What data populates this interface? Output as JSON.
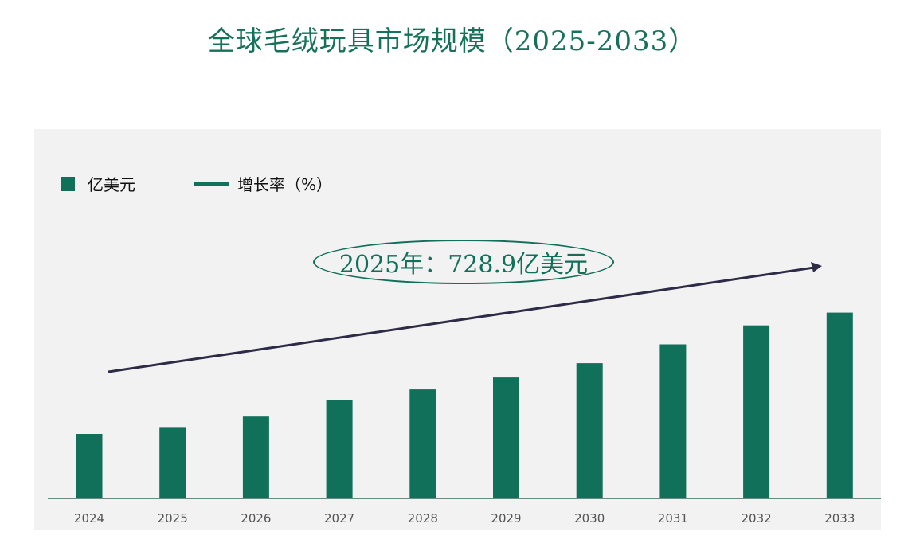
{
  "title": "全球毛绒玩具市场规模（2025-2033）",
  "legend": {
    "bar_label": "亿美元",
    "line_label": "增长率（%）"
  },
  "callout": "2025年：728.9亿美元",
  "colors": {
    "bar": "#10705a",
    "title": "#17715a",
    "arrow": "#2d2b45",
    "background": "#f2f2f2"
  },
  "chart_data": {
    "type": "bar",
    "categories": [
      "2024",
      "2025",
      "2026",
      "2027",
      "2028",
      "2029",
      "2030",
      "2031",
      "2032",
      "2033"
    ],
    "series": [
      {
        "name": "亿美元",
        "values": [
          659,
          728.9,
          836,
          1005,
          1114,
          1236,
          1382,
          1574,
          1768,
          1899
        ]
      }
    ],
    "ylim": [
      0,
      2000
    ],
    "xlabel": "",
    "ylabel": "",
    "grid": false,
    "legend_position": "top-left",
    "annotation": "2025年：728.9亿美元",
    "trend_arrow": "increasing"
  }
}
